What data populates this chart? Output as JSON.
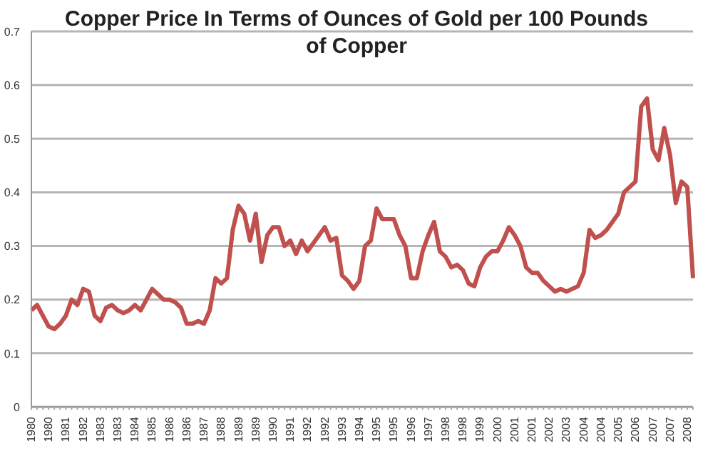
{
  "chart_data": {
    "type": "line",
    "title": "Copper Price In Terms of Ounces of Gold per 100 Pounds of Copper",
    "categories": [
      "1980",
      null,
      null,
      "1980",
      null,
      null,
      "1981",
      null,
      null,
      "1982",
      null,
      null,
      "1983",
      null,
      null,
      "1983",
      null,
      null,
      "1984",
      null,
      null,
      "1985",
      null,
      null,
      "1986",
      null,
      null,
      "1986",
      null,
      null,
      "1987",
      null,
      null,
      "1988",
      null,
      null,
      "1989",
      null,
      null,
      "1989",
      null,
      null,
      "1990",
      null,
      null,
      "1991",
      null,
      null,
      "1992",
      null,
      null,
      "1992",
      null,
      null,
      "1993",
      null,
      null,
      "1994",
      null,
      null,
      "1995",
      null,
      null,
      "1995",
      null,
      null,
      "1996",
      null,
      null,
      "1997",
      null,
      null,
      "1998",
      null,
      null,
      "1998",
      null,
      null,
      "1999",
      null,
      null,
      "2000",
      null,
      null,
      "2001",
      null,
      null,
      "2001",
      null,
      null,
      "2002",
      null,
      null,
      "2003",
      null,
      null,
      "2004",
      null,
      null,
      "2004",
      null,
      null,
      "2005",
      null,
      null,
      "2006",
      null,
      null,
      "2007",
      null,
      null,
      "2007",
      null,
      null,
      "2008",
      null
    ],
    "series": [
      {
        "color": "#c0504d",
        "values": [
          0.18,
          0.19,
          0.17,
          0.15,
          0.145,
          0.155,
          0.17,
          0.2,
          0.19,
          0.22,
          0.215,
          0.17,
          0.16,
          0.185,
          0.19,
          0.18,
          0.175,
          0.18,
          0.19,
          0.18,
          0.2,
          0.22,
          0.21,
          0.2,
          0.2,
          0.195,
          0.185,
          0.155,
          0.155,
          0.16,
          0.155,
          0.18,
          0.24,
          0.23,
          0.24,
          0.33,
          0.375,
          0.36,
          0.31,
          0.36,
          0.27,
          0.32,
          0.335,
          0.335,
          0.3,
          0.31,
          0.285,
          0.31,
          0.29,
          0.305,
          0.32,
          0.335,
          0.31,
          0.315,
          0.245,
          0.235,
          0.22,
          0.235,
          0.3,
          0.31,
          0.37,
          0.35,
          0.35,
          0.35,
          0.32,
          0.3,
          0.24,
          0.24,
          0.29,
          0.32,
          0.345,
          0.29,
          0.28,
          0.26,
          0.265,
          0.255,
          0.23,
          0.225,
          0.26,
          0.28,
          0.29,
          0.29,
          0.31,
          0.335,
          0.32,
          0.3,
          0.26,
          0.25,
          0.25,
          0.235,
          0.225,
          0.215,
          0.22,
          0.215,
          0.22,
          0.225,
          0.25,
          0.33,
          0.315,
          0.32,
          0.33,
          0.345,
          0.36,
          0.4,
          0.41,
          0.42,
          0.56,
          0.575,
          0.48,
          0.46,
          0.52,
          0.47,
          0.38,
          0.42,
          0.41,
          0.24
        ]
      }
    ],
    "ylim": [
      0,
      0.7
    ],
    "yticks": [
      0,
      0.1,
      0.2,
      0.3,
      0.4,
      0.5,
      0.6,
      0.7
    ],
    "grid": "y",
    "legend": false,
    "marker": "none",
    "line_style": "solid"
  }
}
